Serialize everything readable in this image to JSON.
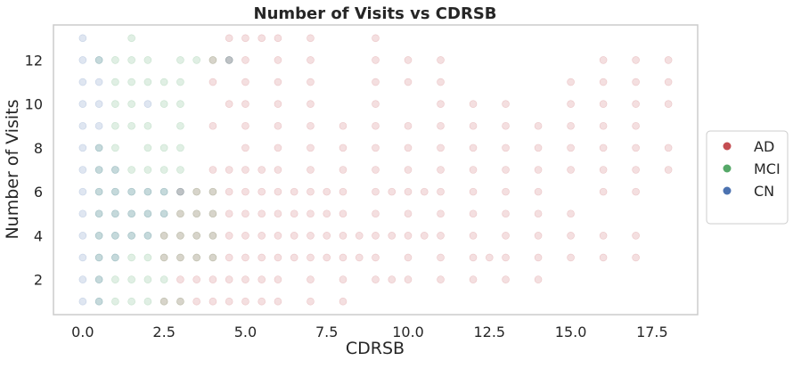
{
  "chart_data": {
    "type": "scatter",
    "title": "Number of Visits vs CDRSB",
    "xlabel": "CDRSB",
    "ylabel": "Number of Visits",
    "xlim": [
      -0.9,
      18.9
    ],
    "ylim": [
      0.4,
      13.6
    ],
    "xticks": [
      0.0,
      2.5,
      5.0,
      7.5,
      10.0,
      12.5,
      15.0,
      17.5
    ],
    "xtick_labels": [
      "0.0",
      "2.5",
      "5.0",
      "7.5",
      "10.0",
      "12.5",
      "15.0",
      "17.5"
    ],
    "yticks": [
      2,
      4,
      6,
      8,
      10,
      12
    ],
    "ytick_labels": [
      "2",
      "4",
      "6",
      "8",
      "10",
      "12"
    ],
    "grid": false,
    "legend_position": "right-outside",
    "series": [
      {
        "name": "AD",
        "color": "#c44e52",
        "points": [
          [
            2.5,
            1
          ],
          [
            3,
            1
          ],
          [
            3.5,
            1
          ],
          [
            4,
            1
          ],
          [
            4.5,
            1
          ],
          [
            5,
            1
          ],
          [
            5.5,
            1
          ],
          [
            6,
            1
          ],
          [
            7,
            1
          ],
          [
            8,
            1
          ],
          [
            3,
            2
          ],
          [
            3.5,
            2
          ],
          [
            4,
            2
          ],
          [
            4.5,
            2
          ],
          [
            5,
            2
          ],
          [
            5.5,
            2
          ],
          [
            6,
            2
          ],
          [
            7,
            2
          ],
          [
            8,
            2
          ],
          [
            9,
            2
          ],
          [
            9.5,
            2
          ],
          [
            10,
            2
          ],
          [
            11,
            2
          ],
          [
            12,
            2
          ],
          [
            13,
            2
          ],
          [
            14,
            2
          ],
          [
            2.5,
            3
          ],
          [
            3,
            3
          ],
          [
            3.5,
            3
          ],
          [
            4,
            3
          ],
          [
            4.5,
            3
          ],
          [
            5,
            3
          ],
          [
            5.5,
            3
          ],
          [
            6,
            3
          ],
          [
            6.5,
            3
          ],
          [
            7,
            3
          ],
          [
            7.5,
            3
          ],
          [
            8,
            3
          ],
          [
            8.5,
            3
          ],
          [
            9,
            3
          ],
          [
            10,
            3
          ],
          [
            11,
            3
          ],
          [
            12,
            3
          ],
          [
            12.5,
            3
          ],
          [
            13,
            3
          ],
          [
            14,
            3
          ],
          [
            15,
            3
          ],
          [
            16,
            3
          ],
          [
            17,
            3
          ],
          [
            2.5,
            4
          ],
          [
            3,
            4
          ],
          [
            3.5,
            4
          ],
          [
            4,
            4
          ],
          [
            4.5,
            4
          ],
          [
            5,
            4
          ],
          [
            5.5,
            4
          ],
          [
            6,
            4
          ],
          [
            6.5,
            4
          ],
          [
            7,
            4
          ],
          [
            7.5,
            4
          ],
          [
            8,
            4
          ],
          [
            8.5,
            4
          ],
          [
            9,
            4
          ],
          [
            9.5,
            4
          ],
          [
            10,
            4
          ],
          [
            10.5,
            4
          ],
          [
            11,
            4
          ],
          [
            12,
            4
          ],
          [
            13,
            4
          ],
          [
            14,
            4
          ],
          [
            15,
            4
          ],
          [
            16,
            4
          ],
          [
            17,
            4
          ],
          [
            3,
            5
          ],
          [
            3.5,
            5
          ],
          [
            4,
            5
          ],
          [
            4.5,
            5
          ],
          [
            5,
            5
          ],
          [
            5.5,
            5
          ],
          [
            6,
            5
          ],
          [
            6.5,
            5
          ],
          [
            7,
            5
          ],
          [
            7.5,
            5
          ],
          [
            8,
            5
          ],
          [
            9,
            5
          ],
          [
            10,
            5
          ],
          [
            11,
            5
          ],
          [
            12,
            5
          ],
          [
            13,
            5
          ],
          [
            14,
            5
          ],
          [
            15,
            5
          ],
          [
            3,
            6
          ],
          [
            3.5,
            6
          ],
          [
            4,
            6
          ],
          [
            4.5,
            6
          ],
          [
            5,
            6
          ],
          [
            5.5,
            6
          ],
          [
            6,
            6
          ],
          [
            6.5,
            6
          ],
          [
            7,
            6
          ],
          [
            7.5,
            6
          ],
          [
            8,
            6
          ],
          [
            9,
            6
          ],
          [
            9.5,
            6
          ],
          [
            10,
            6
          ],
          [
            10.5,
            6
          ],
          [
            11,
            6
          ],
          [
            12,
            6
          ],
          [
            13,
            6
          ],
          [
            14,
            6
          ],
          [
            16,
            6
          ],
          [
            17,
            6
          ],
          [
            4,
            7
          ],
          [
            4.5,
            7
          ],
          [
            5,
            7
          ],
          [
            5.5,
            7
          ],
          [
            6,
            7
          ],
          [
            7,
            7
          ],
          [
            8,
            7
          ],
          [
            9,
            7
          ],
          [
            10,
            7
          ],
          [
            11,
            7
          ],
          [
            12,
            7
          ],
          [
            13,
            7
          ],
          [
            14,
            7
          ],
          [
            15,
            7
          ],
          [
            16,
            7
          ],
          [
            17,
            7
          ],
          [
            18,
            7
          ],
          [
            5,
            8
          ],
          [
            6,
            8
          ],
          [
            7,
            8
          ],
          [
            8,
            8
          ],
          [
            9,
            8
          ],
          [
            10,
            8
          ],
          [
            11,
            8
          ],
          [
            12,
            8
          ],
          [
            13,
            8
          ],
          [
            14,
            8
          ],
          [
            15,
            8
          ],
          [
            16,
            8
          ],
          [
            17,
            8
          ],
          [
            18,
            8
          ],
          [
            4,
            9
          ],
          [
            5,
            9
          ],
          [
            6,
            9
          ],
          [
            7,
            9
          ],
          [
            8,
            9
          ],
          [
            9,
            9
          ],
          [
            10,
            9
          ],
          [
            11,
            9
          ],
          [
            12,
            9
          ],
          [
            13,
            9
          ],
          [
            14,
            9
          ],
          [
            15,
            9
          ],
          [
            16,
            9
          ],
          [
            17,
            9
          ],
          [
            4.5,
            10
          ],
          [
            5,
            10
          ],
          [
            6,
            10
          ],
          [
            7,
            10
          ],
          [
            9,
            10
          ],
          [
            11,
            10
          ],
          [
            12,
            10
          ],
          [
            13,
            10
          ],
          [
            15,
            10
          ],
          [
            16,
            10
          ],
          [
            17,
            10
          ],
          [
            18,
            10
          ],
          [
            4,
            11
          ],
          [
            5,
            11
          ],
          [
            6,
            11
          ],
          [
            7,
            11
          ],
          [
            9,
            11
          ],
          [
            10,
            11
          ],
          [
            11,
            11
          ],
          [
            15,
            11
          ],
          [
            16,
            11
          ],
          [
            17,
            11
          ],
          [
            18,
            11
          ],
          [
            4,
            12
          ],
          [
            4.5,
            12
          ],
          [
            5,
            12
          ],
          [
            6,
            12
          ],
          [
            7,
            12
          ],
          [
            9,
            12
          ],
          [
            10,
            12
          ],
          [
            11,
            12
          ],
          [
            16,
            12
          ],
          [
            17,
            12
          ],
          [
            18,
            12
          ],
          [
            4.5,
            13
          ],
          [
            5,
            13
          ],
          [
            5.5,
            13
          ],
          [
            6,
            13
          ],
          [
            7,
            13
          ],
          [
            9,
            13
          ]
        ]
      },
      {
        "name": "MCI",
        "color": "#55a868",
        "points": [
          [
            0.5,
            1
          ],
          [
            1,
            1
          ],
          [
            1.5,
            1
          ],
          [
            2,
            1
          ],
          [
            2.5,
            1
          ],
          [
            3,
            1
          ],
          [
            0.5,
            2
          ],
          [
            1,
            2
          ],
          [
            1.5,
            2
          ],
          [
            2,
            2
          ],
          [
            2.5,
            2
          ],
          [
            0.5,
            3
          ],
          [
            1,
            3
          ],
          [
            1.5,
            3
          ],
          [
            2,
            3
          ],
          [
            2.5,
            3
          ],
          [
            3,
            3
          ],
          [
            3.5,
            3
          ],
          [
            4,
            3
          ],
          [
            0.5,
            4
          ],
          [
            1,
            4
          ],
          [
            1.5,
            4
          ],
          [
            2,
            4
          ],
          [
            2.5,
            4
          ],
          [
            3,
            4
          ],
          [
            3.5,
            4
          ],
          [
            4,
            4
          ],
          [
            0.5,
            5
          ],
          [
            1,
            5
          ],
          [
            1.5,
            5
          ],
          [
            2,
            5
          ],
          [
            2.5,
            5
          ],
          [
            3,
            5
          ],
          [
            3.5,
            5
          ],
          [
            4,
            5
          ],
          [
            0.5,
            6
          ],
          [
            1,
            6
          ],
          [
            1.5,
            6
          ],
          [
            2,
            6
          ],
          [
            2.5,
            6
          ],
          [
            3,
            6
          ],
          [
            3.5,
            6
          ],
          [
            4,
            6
          ],
          [
            0.5,
            7
          ],
          [
            1,
            7
          ],
          [
            1.5,
            7
          ],
          [
            2,
            7
          ],
          [
            2.5,
            7
          ],
          [
            3,
            7
          ],
          [
            0.5,
            8
          ],
          [
            1,
            8
          ],
          [
            2,
            8
          ],
          [
            2.5,
            8
          ],
          [
            3,
            8
          ],
          [
            1,
            9
          ],
          [
            1.5,
            9
          ],
          [
            2,
            9
          ],
          [
            3,
            9
          ],
          [
            1,
            10
          ],
          [
            1.5,
            10
          ],
          [
            2.5,
            10
          ],
          [
            3,
            10
          ],
          [
            1,
            11
          ],
          [
            1.5,
            11
          ],
          [
            2,
            11
          ],
          [
            2.5,
            11
          ],
          [
            3,
            11
          ],
          [
            0.5,
            12
          ],
          [
            1,
            12
          ],
          [
            1.5,
            12
          ],
          [
            2,
            12
          ],
          [
            3,
            12
          ],
          [
            3.5,
            12
          ],
          [
            4,
            12
          ],
          [
            4.5,
            12
          ],
          [
            1.5,
            13
          ]
        ]
      },
      {
        "name": "CN",
        "color": "#4c72b0",
        "points": [
          [
            0,
            1
          ],
          [
            0.5,
            1
          ],
          [
            0,
            2
          ],
          [
            0.5,
            2
          ],
          [
            0,
            3
          ],
          [
            0.5,
            3
          ],
          [
            1,
            3
          ],
          [
            0,
            4
          ],
          [
            0.5,
            4
          ],
          [
            1,
            4
          ],
          [
            1.5,
            4
          ],
          [
            2,
            4
          ],
          [
            0,
            5
          ],
          [
            0.5,
            5
          ],
          [
            1,
            5
          ],
          [
            1.5,
            5
          ],
          [
            2,
            5
          ],
          [
            2.5,
            5
          ],
          [
            0,
            6
          ],
          [
            0.5,
            6
          ],
          [
            1,
            6
          ],
          [
            1.5,
            6
          ],
          [
            2,
            6
          ],
          [
            2.5,
            6
          ],
          [
            3,
            6
          ],
          [
            0,
            7
          ],
          [
            0.5,
            7
          ],
          [
            1,
            7
          ],
          [
            0,
            8
          ],
          [
            0.5,
            8
          ],
          [
            0,
            9
          ],
          [
            0.5,
            9
          ],
          [
            0,
            10
          ],
          [
            0.5,
            10
          ],
          [
            2,
            10
          ],
          [
            0,
            11
          ],
          [
            0.5,
            11
          ],
          [
            0,
            12
          ],
          [
            0.5,
            12
          ],
          [
            4.5,
            12
          ],
          [
            0,
            13
          ]
        ]
      }
    ]
  }
}
